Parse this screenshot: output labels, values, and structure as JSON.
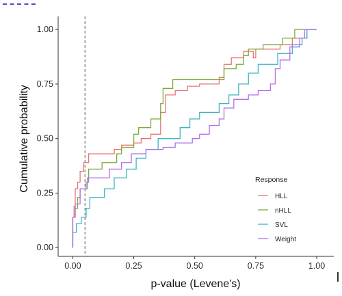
{
  "chart_data": {
    "type": "line",
    "subtype": "ecdf-step",
    "xlabel": "p-value (Levene's)",
    "ylabel": "Cumulative probability",
    "xlim": [
      -0.06,
      1.07
    ],
    "ylim": [
      -0.04,
      1.06
    ],
    "x_ticks": [
      "0.00",
      "0.25",
      "0.50",
      "0.75",
      "1.00"
    ],
    "y_ticks": [
      "0.00",
      "0.25",
      "0.50",
      "0.75",
      "1.00"
    ],
    "reference_line": {
      "x": 0.05,
      "style": "dashed"
    },
    "grid": false,
    "legend": {
      "title": "Response",
      "position": "right"
    },
    "series": [
      {
        "name": "HLL",
        "color": "#e8746f",
        "points": [
          [
            0.0,
            0.0
          ],
          [
            0.0,
            0.14
          ],
          [
            0.005,
            0.19
          ],
          [
            0.01,
            0.27
          ],
          [
            0.02,
            0.3
          ],
          [
            0.03,
            0.35
          ],
          [
            0.045,
            0.39
          ],
          [
            0.065,
            0.43
          ],
          [
            0.17,
            0.45
          ],
          [
            0.2,
            0.47
          ],
          [
            0.25,
            0.48
          ],
          [
            0.28,
            0.5
          ],
          [
            0.32,
            0.52
          ],
          [
            0.36,
            0.62
          ],
          [
            0.38,
            0.7
          ],
          [
            0.42,
            0.72
          ],
          [
            0.47,
            0.74
          ],
          [
            0.52,
            0.75
          ],
          [
            0.6,
            0.78
          ],
          [
            0.62,
            0.84
          ],
          [
            0.65,
            0.87
          ],
          [
            0.7,
            0.9
          ],
          [
            0.74,
            0.87
          ],
          [
            0.75,
            0.91
          ],
          [
            0.85,
            0.93
          ],
          [
            0.9,
            0.96
          ],
          [
            0.96,
            1.0
          ],
          [
            1.0,
            1.0
          ]
        ]
      },
      {
        "name": "nHLL",
        "color": "#7aab3a",
        "points": [
          [
            0.0,
            0.0
          ],
          [
            0.0,
            0.14
          ],
          [
            0.01,
            0.18
          ],
          [
            0.02,
            0.23
          ],
          [
            0.03,
            0.27
          ],
          [
            0.06,
            0.32
          ],
          [
            0.065,
            0.36
          ],
          [
            0.12,
            0.39
          ],
          [
            0.18,
            0.43
          ],
          [
            0.2,
            0.46
          ],
          [
            0.25,
            0.52
          ],
          [
            0.27,
            0.55
          ],
          [
            0.32,
            0.59
          ],
          [
            0.36,
            0.66
          ],
          [
            0.37,
            0.73
          ],
          [
            0.39,
            0.73
          ],
          [
            0.41,
            0.77
          ],
          [
            0.6,
            0.77
          ],
          [
            0.62,
            0.82
          ],
          [
            0.67,
            0.84
          ],
          [
            0.7,
            0.88
          ],
          [
            0.72,
            0.91
          ],
          [
            0.78,
            0.93
          ],
          [
            0.86,
            0.96
          ],
          [
            0.91,
            1.0
          ],
          [
            1.0,
            1.0
          ]
        ]
      },
      {
        "name": "SVL",
        "color": "#3cb3c2",
        "points": [
          [
            0.0,
            0.0
          ],
          [
            0.0,
            0.07
          ],
          [
            0.015,
            0.11
          ],
          [
            0.035,
            0.14
          ],
          [
            0.055,
            0.18
          ],
          [
            0.07,
            0.23
          ],
          [
            0.13,
            0.27
          ],
          [
            0.17,
            0.32
          ],
          [
            0.22,
            0.36
          ],
          [
            0.26,
            0.41
          ],
          [
            0.3,
            0.45
          ],
          [
            0.35,
            0.5
          ],
          [
            0.44,
            0.55
          ],
          [
            0.48,
            0.59
          ],
          [
            0.52,
            0.62
          ],
          [
            0.6,
            0.66
          ],
          [
            0.64,
            0.7
          ],
          [
            0.68,
            0.75
          ],
          [
            0.72,
            0.8
          ],
          [
            0.76,
            0.84
          ],
          [
            0.84,
            0.89
          ],
          [
            0.9,
            0.93
          ],
          [
            0.94,
            0.96
          ],
          [
            0.96,
            1.0
          ],
          [
            1.0,
            1.0
          ]
        ]
      },
      {
        "name": "Weight",
        "color": "#b46ee8",
        "points": [
          [
            0.0,
            0.0
          ],
          [
            0.0,
            0.14
          ],
          [
            0.01,
            0.2
          ],
          [
            0.03,
            0.27
          ],
          [
            0.055,
            0.3
          ],
          [
            0.065,
            0.32
          ],
          [
            0.15,
            0.36
          ],
          [
            0.2,
            0.39
          ],
          [
            0.24,
            0.43
          ],
          [
            0.3,
            0.45
          ],
          [
            0.37,
            0.46
          ],
          [
            0.42,
            0.48
          ],
          [
            0.49,
            0.5
          ],
          [
            0.52,
            0.52
          ],
          [
            0.56,
            0.56
          ],
          [
            0.6,
            0.59
          ],
          [
            0.62,
            0.64
          ],
          [
            0.66,
            0.68
          ],
          [
            0.72,
            0.7
          ],
          [
            0.76,
            0.72
          ],
          [
            0.81,
            0.75
          ],
          [
            0.83,
            0.82
          ],
          [
            0.85,
            0.86
          ],
          [
            0.89,
            0.92
          ],
          [
            0.93,
            0.96
          ],
          [
            0.95,
            1.0
          ],
          [
            1.0,
            1.0
          ]
        ]
      }
    ]
  }
}
